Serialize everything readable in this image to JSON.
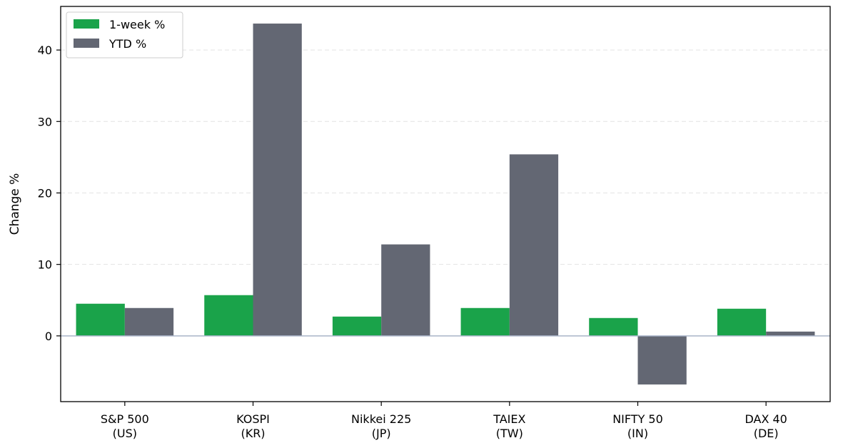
{
  "chart_data": {
    "type": "bar",
    "title": "",
    "xlabel": "",
    "ylabel": "Change %",
    "categories": [
      [
        "S&P 500",
        "(US)"
      ],
      [
        "KOSPI",
        "(KR)"
      ],
      [
        "Nikkei 225",
        "(JP)"
      ],
      [
        "TAIEX",
        "(TW)"
      ],
      [
        "NIFTY 50",
        "(IN)"
      ],
      [
        "DAX 40",
        "(DE)"
      ]
    ],
    "series": [
      {
        "name": "1-week %",
        "color": "#1aa34a",
        "values": [
          4.5,
          5.7,
          2.7,
          3.9,
          2.5,
          3.8
        ]
      },
      {
        "name": "YTD %",
        "color": "#636773",
        "values": [
          3.9,
          43.7,
          12.8,
          25.4,
          -6.8,
          0.6
        ]
      }
    ],
    "ylim": [
      -9.2,
      46.1
    ],
    "yticks": [
      0,
      10,
      20,
      30,
      40
    ],
    "grid": "y-dashed",
    "zero_line_color": "#a9b4c8",
    "legend_position": "upper-left"
  }
}
